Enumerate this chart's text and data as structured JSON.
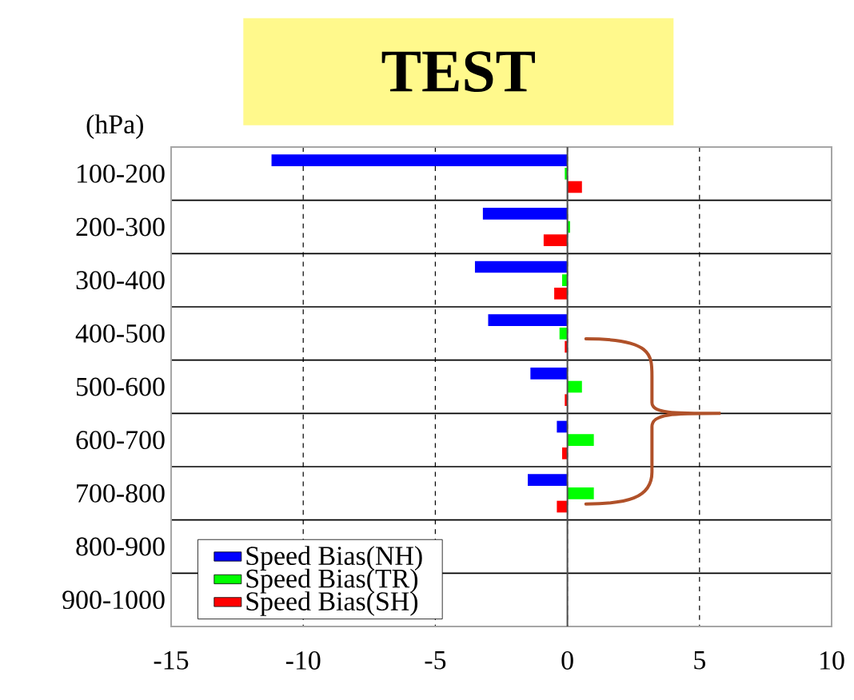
{
  "chart_data": {
    "type": "bar",
    "orientation": "horizontal",
    "title": "TEST",
    "ylabel": "(hPa)",
    "categories": [
      "100-200",
      "200-300",
      "300-400",
      "400-500",
      "500-600",
      "600-700",
      "700-800",
      "800-900",
      "900-1000"
    ],
    "series": [
      {
        "name": "Speed Bias(NH)",
        "color": "#0000ff",
        "values": [
          -11.2,
          -3.2,
          -3.5,
          -3.0,
          -1.4,
          -0.4,
          -1.5,
          null,
          null
        ]
      },
      {
        "name": "Speed Bias(TR)",
        "color": "#00ff00",
        "values": [
          -0.1,
          0.1,
          -0.2,
          -0.3,
          0.55,
          1.0,
          1.0,
          null,
          null
        ]
      },
      {
        "name": "Speed Bias(SH)",
        "color": "#ff0000",
        "values": [
          0.55,
          -0.9,
          -0.5,
          -0.1,
          -0.1,
          -0.2,
          -0.4,
          null,
          null
        ]
      }
    ],
    "xlim": [
      -15,
      10
    ],
    "xticks": [
      -15,
      -10,
      -5,
      0,
      5,
      10
    ],
    "grid": "x",
    "legend": "bottom left",
    "ref_lines": [
      {
        "axis": "x",
        "value": 0
      }
    ]
  }
}
